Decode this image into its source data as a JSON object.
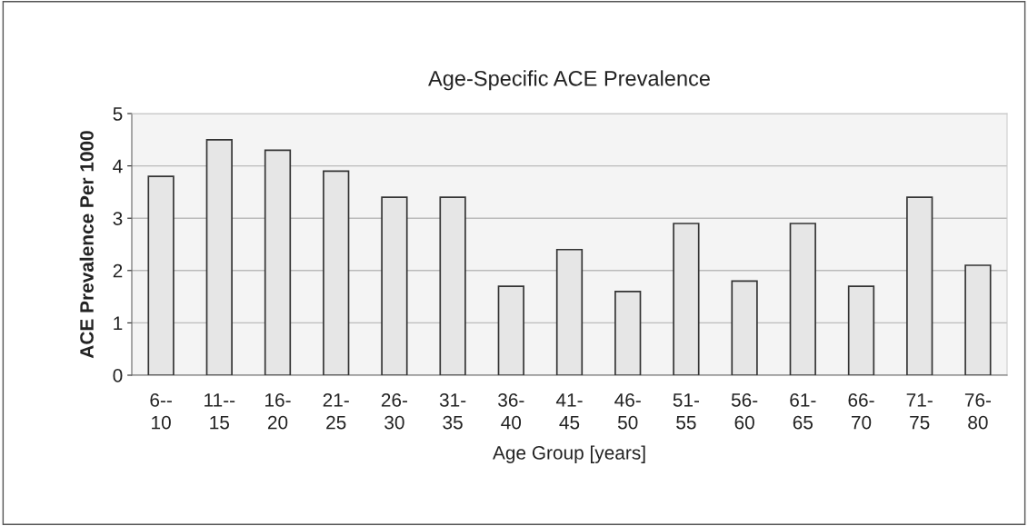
{
  "chart_data": {
    "type": "bar",
    "title": "Age-Specific ACE Prevalence",
    "xlabel": "Age Group [years]",
    "ylabel": "ACE Prevalence Per 1000",
    "categories": [
      "6--\n10",
      "11--\n15",
      "16-\n20",
      "21-\n25",
      "26-\n30",
      "31-\n35",
      "36-\n40",
      "41-\n45",
      "46-\n50",
      "51-\n55",
      "56-\n60",
      "61-\n65",
      "66-\n70",
      "71-\n75",
      "76-\n80"
    ],
    "values": [
      3.8,
      4.5,
      4.3,
      3.9,
      3.4,
      3.4,
      1.7,
      2.4,
      1.6,
      2.9,
      1.8,
      2.9,
      1.7,
      3.4,
      2.1
    ],
    "color": "#e6e6e6",
    "ylim": [
      0,
      5
    ],
    "yticks": [
      0,
      1,
      2,
      3,
      4,
      5
    ],
    "grid": "y",
    "legend": false
  }
}
